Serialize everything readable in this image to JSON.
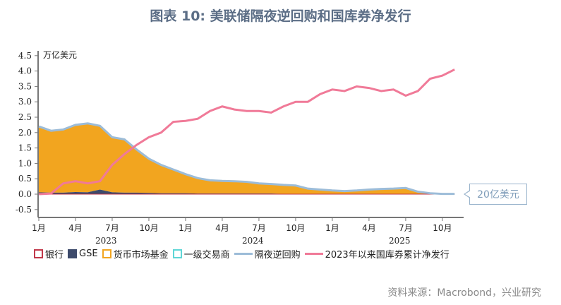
{
  "title": "图表 10: 美联储隔夜逆回购和国库券净发行",
  "source": "资料来源：Macrobond，兴业研究",
  "callout": "20亿美元",
  "colors": {
    "bank": "#c0384a",
    "gse": "#3d4a6b",
    "mmf": "#f2a51f",
    "dealer": "#5fd6d6",
    "rrp": "#9cbcd8",
    "tbill": "#f07a98"
  },
  "chart_data": {
    "type": "area",
    "ylabel": "万亿美元",
    "ylim": [
      -0.5,
      4.5
    ],
    "yticks": [
      "-0.5",
      "0.0",
      "0.5",
      "1.0",
      "1.5",
      "2.0",
      "2.5",
      "3.0",
      "3.5",
      "4.0",
      "4.5"
    ],
    "xtick_labels": [
      "1月",
      "4月",
      "7月",
      "10月",
      "1月",
      "4月",
      "7月",
      "10月",
      "1月",
      "4月",
      "7月",
      "10月"
    ],
    "year_labels": [
      "2023",
      "2024",
      "2025"
    ],
    "legend_position": "bottom",
    "x": [
      "2023-01",
      "2023-02",
      "2023-03",
      "2023-04",
      "2023-05",
      "2023-06",
      "2023-07",
      "2023-08",
      "2023-09",
      "2023-10",
      "2023-11",
      "2023-12",
      "2024-01",
      "2024-02",
      "2024-03",
      "2024-04",
      "2024-05",
      "2024-06",
      "2024-07",
      "2024-08",
      "2024-09",
      "2024-10",
      "2024-11",
      "2024-12",
      "2025-01",
      "2025-02",
      "2025-03",
      "2025-04",
      "2025-05",
      "2025-06",
      "2025-07",
      "2025-08",
      "2025-09",
      "2025-10",
      "2025-11"
    ],
    "series": [
      {
        "name": "银行",
        "type": "area",
        "values": [
          0,
          0,
          0,
          0,
          0,
          0,
          0,
          0,
          0,
          0,
          0,
          0,
          0,
          0,
          0,
          0,
          0,
          0,
          0,
          0,
          0,
          0,
          0,
          0,
          0,
          0,
          0,
          0,
          0,
          0,
          0,
          0,
          0,
          0,
          0
        ]
      },
      {
        "name": "GSE",
        "type": "area",
        "values": [
          0.06,
          0.05,
          0.05,
          0.07,
          0.06,
          0.15,
          0.06,
          0.05,
          0.05,
          0.04,
          0.03,
          0.03,
          0.03,
          0.02,
          0.02,
          0.02,
          0.02,
          0.02,
          0.02,
          0.02,
          0.01,
          0.01,
          0.01,
          0.01,
          0.01,
          0.01,
          0.01,
          0.01,
          0.01,
          0.01,
          0.01,
          0.01,
          0.01,
          0,
          0
        ]
      },
      {
        "name": "货币市场基金",
        "type": "area",
        "values": [
          2.12,
          2.0,
          2.03,
          2.15,
          2.22,
          2.05,
          1.77,
          1.71,
          1.38,
          1.1,
          0.9,
          0.75,
          0.6,
          0.48,
          0.41,
          0.39,
          0.38,
          0.36,
          0.31,
          0.29,
          0.27,
          0.25,
          0.16,
          0.13,
          0.1,
          0.08,
          0.1,
          0.13,
          0.15,
          0.16,
          0.18,
          0.07,
          0.02,
          0.01,
          0.01
        ]
      },
      {
        "name": "一级交易商",
        "type": "area",
        "values": [
          0,
          0,
          0,
          0,
          0,
          0,
          0,
          0,
          0,
          0,
          0,
          0,
          0,
          0,
          0,
          0,
          0,
          0,
          0,
          0,
          0,
          0,
          0,
          0,
          0,
          0,
          0,
          0,
          0,
          0,
          0,
          0,
          0,
          0,
          0
        ]
      },
      {
        "name": "隔夜逆回购",
        "type": "line",
        "values": [
          2.2,
          2.06,
          2.1,
          2.25,
          2.3,
          2.22,
          1.85,
          1.78,
          1.45,
          1.15,
          0.95,
          0.8,
          0.65,
          0.52,
          0.45,
          0.43,
          0.42,
          0.4,
          0.35,
          0.33,
          0.3,
          0.28,
          0.18,
          0.15,
          0.12,
          0.1,
          0.12,
          0.15,
          0.17,
          0.18,
          0.2,
          0.08,
          0.03,
          0.01,
          0.01
        ]
      },
      {
        "name": "2023年以来国库券累计净发行",
        "type": "line",
        "values": [
          0,
          0.02,
          0.35,
          0.42,
          0.35,
          0.42,
          0.95,
          1.3,
          1.6,
          1.85,
          2.0,
          2.35,
          2.38,
          2.45,
          2.7,
          2.85,
          2.75,
          2.7,
          2.7,
          2.65,
          2.85,
          3.0,
          3.0,
          3.25,
          3.4,
          3.35,
          3.5,
          3.45,
          3.35,
          3.4,
          3.2,
          3.35,
          3.75,
          3.85,
          4.05
        ]
      }
    ]
  }
}
